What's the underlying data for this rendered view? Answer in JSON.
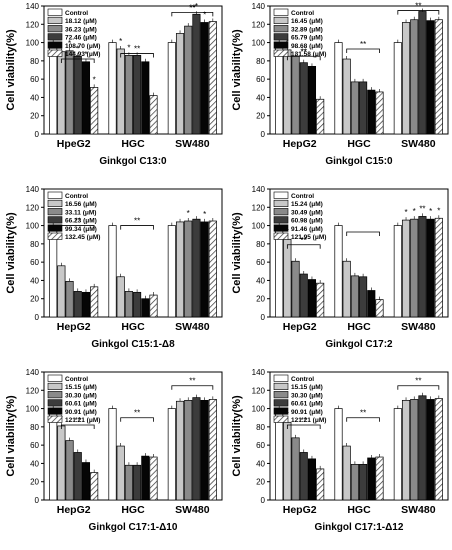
{
  "colors": {
    "bar_fills": [
      "#ffffff",
      "#c8c8c8",
      "#8a8a8a",
      "#3c3c3c",
      "#050505",
      "hatch"
    ],
    "axis": "#000000"
  },
  "chart_data": [
    {
      "type": "bar",
      "title": "Ginkgol C13:0",
      "ylabel": "Cell viability(%)",
      "xlabel": "",
      "ylim": [
        0,
        140
      ],
      "yticks": [
        0,
        20,
        40,
        60,
        80,
        100,
        120,
        140
      ],
      "categories": [
        "HpeG2",
        "HGC",
        "SW480"
      ],
      "legend_position": "top-left",
      "series": [
        {
          "name": "Control",
          "values": [
            100,
            100,
            100
          ]
        },
        {
          "name": "18.12 (μM)",
          "values": [
            90,
            93,
            110
          ]
        },
        {
          "name": "36.23 (μM)",
          "values": [
            91,
            86,
            118
          ]
        },
        {
          "name": "72.46 (μM)",
          "values": [
            85,
            86,
            131
          ]
        },
        {
          "name": "108.70 (μM)",
          "values": [
            79,
            79,
            122
          ]
        },
        {
          "name": "144.93 (μM)",
          "values": [
            51,
            42,
            123
          ]
        }
      ],
      "annotations": [
        "*",
        "*",
        "**",
        "**",
        "*",
        "*",
        "**",
        "*",
        "*",
        "**",
        "*",
        "*"
      ]
    },
    {
      "type": "bar",
      "title": "Ginkgol C15:0",
      "ylabel": "Cell viability(%)",
      "xlabel": "",
      "ylim": [
        0,
        140
      ],
      "yticks": [
        0,
        20,
        40,
        60,
        80,
        100,
        120,
        140
      ],
      "categories": [
        "HepG2",
        "HGC",
        "SW480"
      ],
      "legend_position": "top-left",
      "series": [
        {
          "name": "Control",
          "values": [
            100,
            100,
            100
          ]
        },
        {
          "name": "16.45 (μM)",
          "values": [
            92,
            82,
            122
          ]
        },
        {
          "name": "32.89 (μM)",
          "values": [
            85,
            57,
            125
          ]
        },
        {
          "name": "65.79 (μM)",
          "values": [
            78,
            57,
            134
          ]
        },
        {
          "name": "98.68 (μM)",
          "values": [
            74,
            48,
            124
          ]
        },
        {
          "name": "131.58 (μM)",
          "values": [
            38,
            46,
            125
          ]
        }
      ],
      "annotations": [
        "*",
        "**",
        "**",
        "**",
        "**"
      ]
    },
    {
      "type": "bar",
      "title": "Ginkgol C15:1-Δ8",
      "ylabel": "Cell viability(%)",
      "xlabel": "",
      "ylim": [
        0,
        140
      ],
      "yticks": [
        0,
        20,
        40,
        60,
        80,
        100,
        120,
        140
      ],
      "categories": [
        "HepG2",
        "HGC",
        "SW480"
      ],
      "legend_position": "top-left",
      "series": [
        {
          "name": "Control",
          "values": [
            100,
            100,
            100
          ]
        },
        {
          "name": "16.56 (μM)",
          "values": [
            56,
            44,
            104
          ]
        },
        {
          "name": "33.11 (μM)",
          "values": [
            39,
            28,
            105
          ]
        },
        {
          "name": "66.23 (μM)",
          "values": [
            28,
            27,
            107
          ]
        },
        {
          "name": "99.34 (μM)",
          "values": [
            27,
            20,
            104
          ]
        },
        {
          "name": "132.45 (μM)",
          "values": [
            33,
            24,
            105
          ]
        }
      ],
      "annotations": [
        "**",
        "**",
        "*",
        "*"
      ]
    },
    {
      "type": "bar",
      "title": "Ginkgol C17:2",
      "ylabel": "Cell viability(%)",
      "xlabel": "",
      "ylim": [
        0,
        140
      ],
      "yticks": [
        0,
        20,
        40,
        60,
        80,
        100,
        120,
        140
      ],
      "categories": [
        "HepG2",
        "HGC",
        "SW480"
      ],
      "legend_position": "top-left",
      "series": [
        {
          "name": "Control",
          "values": [
            100,
            100,
            100
          ]
        },
        {
          "name": "15.24 (μM)",
          "values": [
            85,
            61,
            106
          ]
        },
        {
          "name": "30.49 (μM)",
          "values": [
            61,
            45,
            107
          ]
        },
        {
          "name": "60.98 (μM)",
          "values": [
            47,
            44,
            110
          ]
        },
        {
          "name": "91.46 (μM)",
          "values": [
            41,
            29,
            107
          ]
        },
        {
          "name": "121.95 (μM)",
          "values": [
            37,
            19,
            108
          ]
        }
      ],
      "annotations": [
        "*",
        "**",
        "**",
        "*",
        "*",
        "**",
        "*",
        "*"
      ]
    },
    {
      "type": "bar",
      "title": "Ginkgol C17:1-Δ10",
      "ylabel": "Cell viability(%)",
      "xlabel": "",
      "ylim": [
        0,
        140
      ],
      "yticks": [
        0,
        20,
        40,
        60,
        80,
        100,
        120,
        140
      ],
      "categories": [
        "HepG2",
        "HGC",
        "SW480"
      ],
      "legend_position": "top-left",
      "series": [
        {
          "name": "Control",
          "values": [
            100,
            100,
            100
          ]
        },
        {
          "name": "15.15 (μM)",
          "values": [
            81,
            59,
            108
          ]
        },
        {
          "name": "30.30 (μM)",
          "values": [
            65,
            38,
            109
          ]
        },
        {
          "name": "60.61 (μM)",
          "values": [
            52,
            38,
            112
          ]
        },
        {
          "name": "90.91 (μM)",
          "values": [
            41,
            48,
            109
          ]
        },
        {
          "name": "121.21 (μM)",
          "values": [
            30,
            47,
            110
          ]
        }
      ],
      "annotations": [
        "*",
        "**",
        "**",
        "**"
      ]
    },
    {
      "type": "bar",
      "title": "Ginkgol C17:1-Δ12",
      "ylabel": "Cell viability(%)",
      "xlabel": "",
      "ylim": [
        0,
        140
      ],
      "yticks": [
        0,
        20,
        40,
        60,
        80,
        100,
        120,
        140
      ],
      "categories": [
        "HepG2",
        "HGC",
        "SW480"
      ],
      "legend_position": "top-left",
      "series": [
        {
          "name": "Control",
          "values": [
            100,
            100,
            100
          ]
        },
        {
          "name": "15.15 (μM)",
          "values": [
            85,
            59,
            109
          ]
        },
        {
          "name": "30.30 (μM)",
          "values": [
            68,
            39,
            110
          ]
        },
        {
          "name": "60.61 (μM)",
          "values": [
            52,
            39,
            114
          ]
        },
        {
          "name": "90.91 (μM)",
          "values": [
            45,
            46,
            110
          ]
        },
        {
          "name": "121.21 (μM)",
          "values": [
            34,
            47,
            111
          ]
        }
      ],
      "annotations": [
        "*",
        "**",
        "**",
        "**"
      ]
    }
  ]
}
